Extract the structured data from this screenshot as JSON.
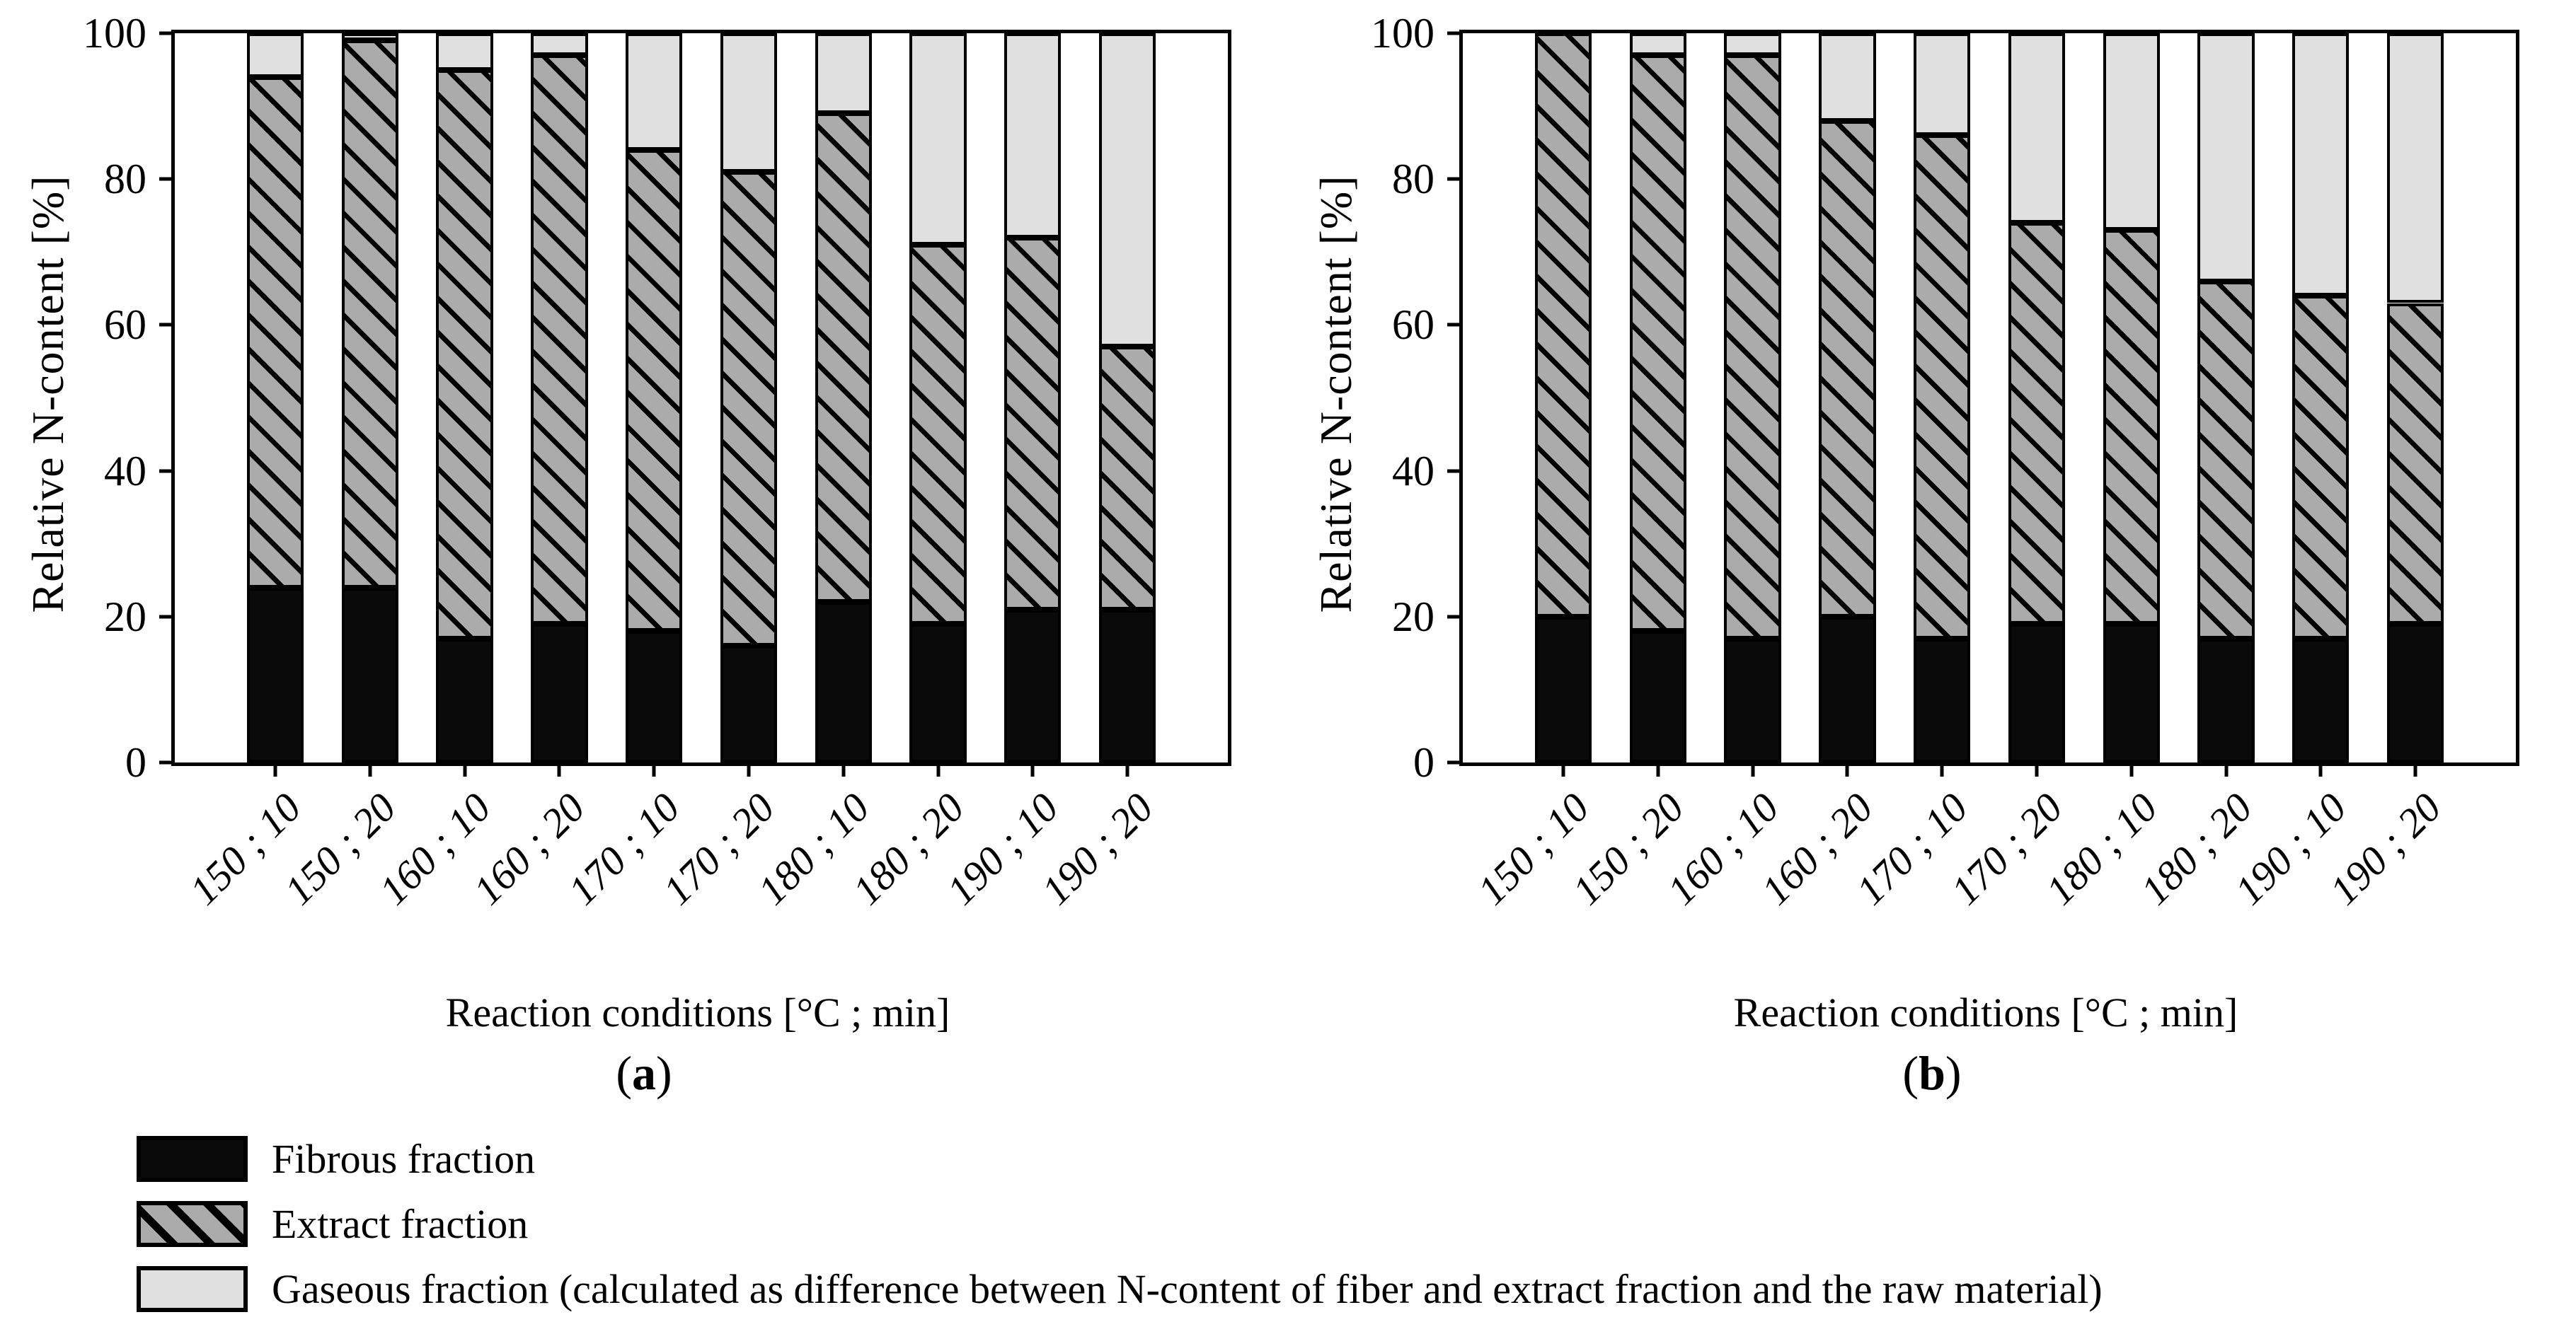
{
  "figure": {
    "y_axis_label": "Relative N-content [%]",
    "x_axis_label": "Reaction conditions [°C ; min]",
    "y_ticks": [
      0,
      20,
      40,
      60,
      80,
      100
    ]
  },
  "chart_data": [
    {
      "type": "bar",
      "stacked": true,
      "panel": "a",
      "caption": {
        "open": "(",
        "letter": "a",
        "close": ")"
      },
      "title": "",
      "xlabel": "Reaction conditions [°C ; min]",
      "ylabel": "Relative N-content [%]",
      "ylim": [
        0,
        100
      ],
      "grid": false,
      "categories": [
        "150 ; 10",
        "150 ; 20",
        "160 ; 10",
        "160 ; 20",
        "170 ; 10",
        "170 ; 20",
        "180 ; 10",
        "180 ; 20",
        "190 ; 10",
        "190 ; 20"
      ],
      "series": [
        {
          "name": "Fibrous fraction",
          "values": [
            24,
            24,
            17,
            19,
            18,
            16,
            22,
            19,
            21,
            21
          ]
        },
        {
          "name": "Extract fraction",
          "values": [
            70,
            75,
            78,
            78,
            66,
            65,
            67,
            52,
            51,
            36
          ]
        },
        {
          "name": "Gaseous fraction",
          "values": [
            6,
            1,
            5,
            3,
            16,
            19,
            11,
            29,
            28,
            43
          ]
        }
      ]
    },
    {
      "type": "bar",
      "stacked": true,
      "panel": "b",
      "caption": {
        "open": "(",
        "letter": "b",
        "close": ")"
      },
      "title": "",
      "xlabel": "Reaction conditions [°C ; min]",
      "ylabel": "Relative N-content [%]",
      "ylim": [
        0,
        100
      ],
      "grid": false,
      "categories": [
        "150 ; 10",
        "150 ; 20",
        "160 ; 10",
        "160 ; 20",
        "170 ; 10",
        "170 ; 20",
        "180 ; 10",
        "180 ; 20",
        "190 ; 10",
        "190 ; 20"
      ],
      "series": [
        {
          "name": "Fibrous fraction",
          "values": [
            20,
            18,
            17,
            20,
            17,
            19,
            19,
            17,
            17,
            19
          ]
        },
        {
          "name": "Extract fraction",
          "values": [
            80,
            79,
            80,
            68,
            69,
            55,
            54,
            49,
            47,
            44
          ]
        },
        {
          "name": "Gaseous fraction",
          "values": [
            0,
            3,
            3,
            12,
            14,
            26,
            27,
            34,
            36,
            37
          ]
        }
      ]
    }
  ],
  "legend": {
    "items": [
      {
        "swatch": "fibrous",
        "label": "Fibrous fraction"
      },
      {
        "swatch": "extract",
        "label": "Extract fraction"
      },
      {
        "swatch": "gaseous",
        "label": "Gaseous fraction (calculated as difference between N-content of fiber and extract fraction and the raw material)"
      }
    ]
  },
  "colors": {
    "fibrous": "#0a0a0a",
    "extract_bg": "#ababab",
    "hatch_line": "#000000",
    "gaseous": "#e0e0e0",
    "axis": "#000000"
  }
}
